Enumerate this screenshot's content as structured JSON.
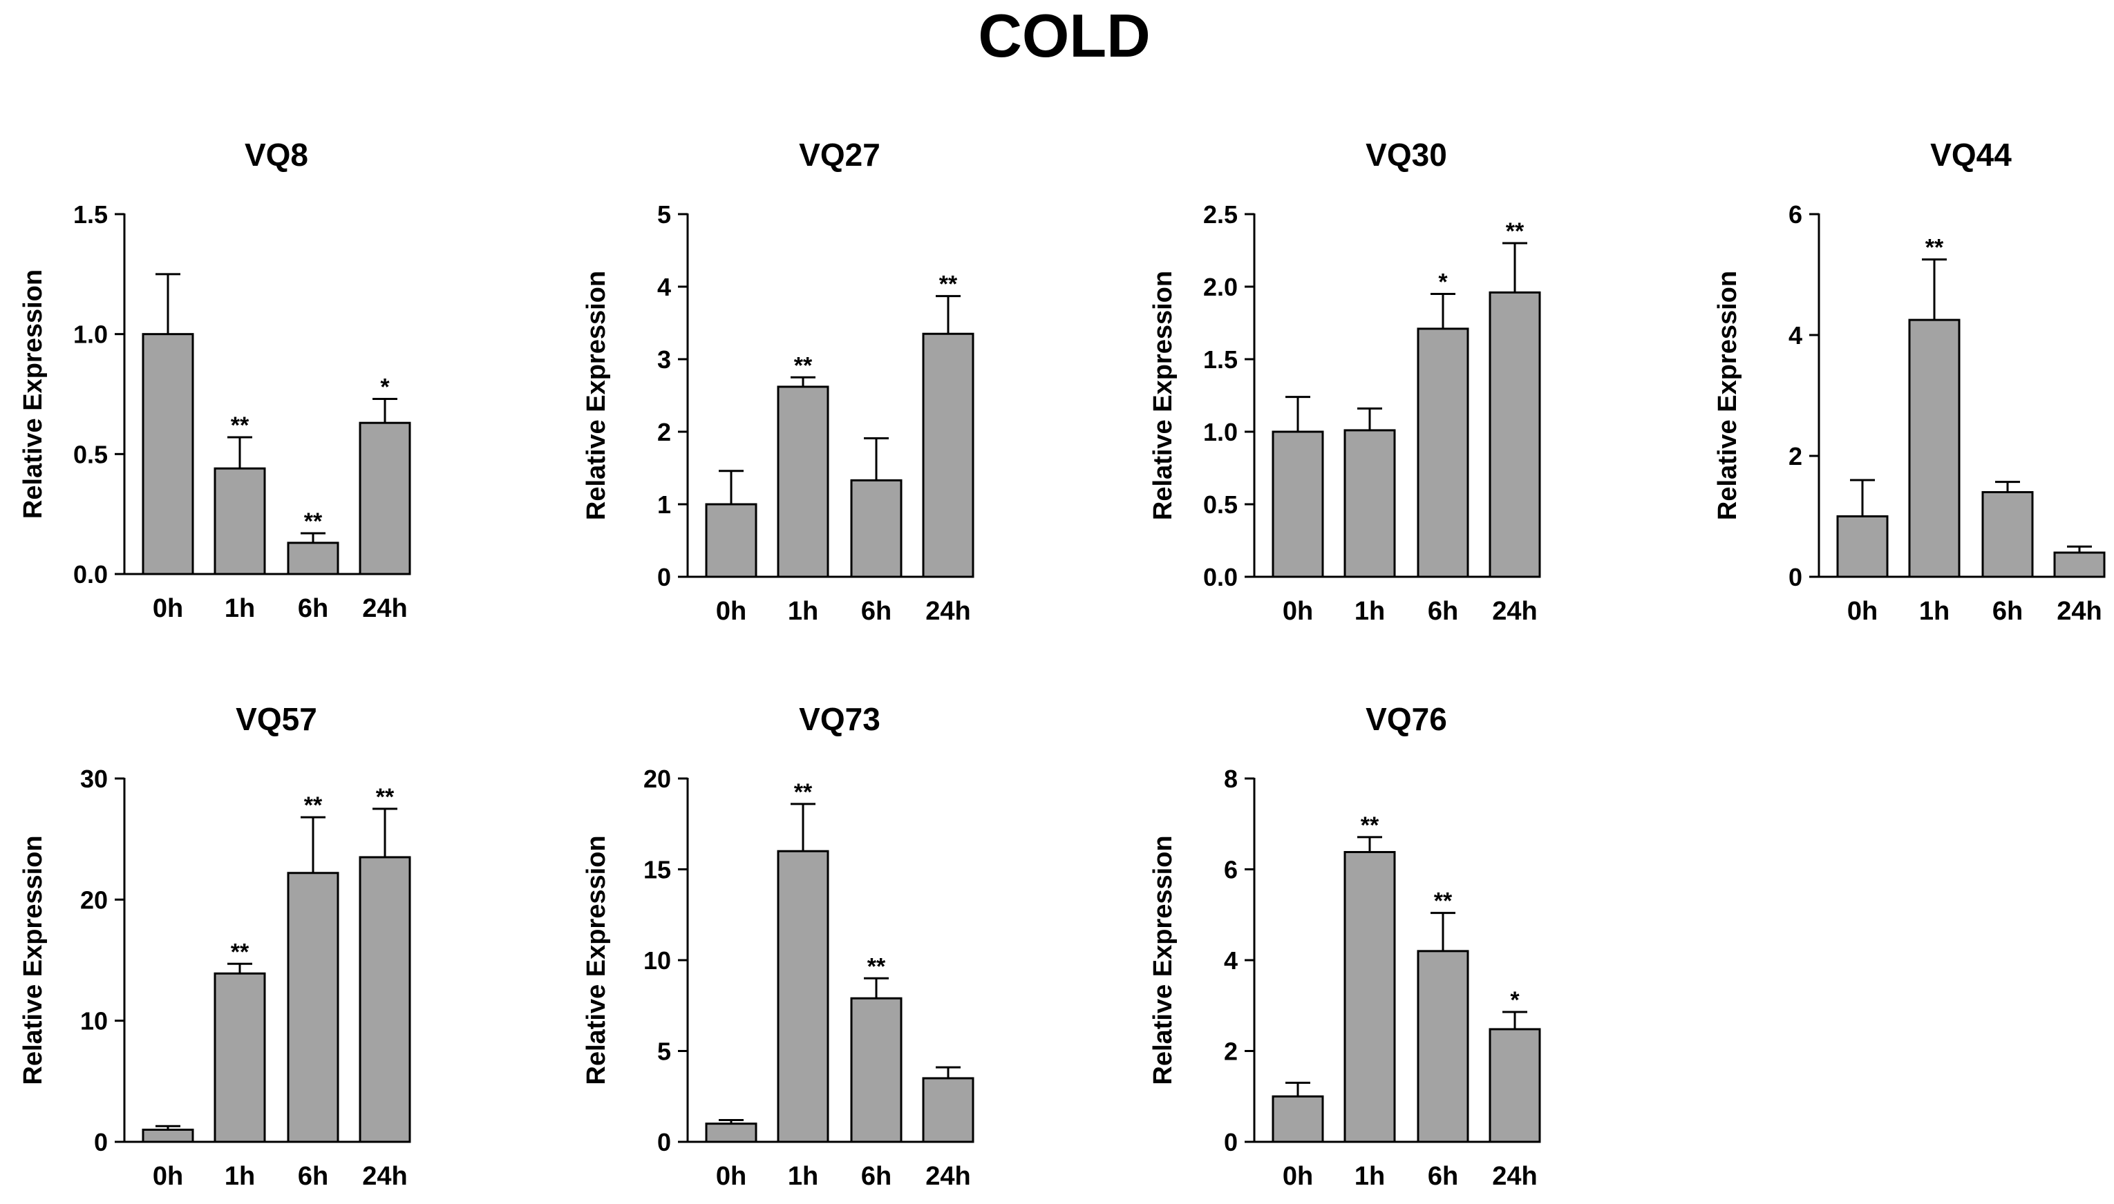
{
  "figure": {
    "title": "COLD"
  },
  "style": {
    "bar_fill": "#a3a3a3",
    "bar_stroke": "#000000",
    "axis_color": "#000000"
  },
  "chart_data": [
    {
      "type": "bar",
      "title": "VQ8",
      "xlabel": "",
      "ylabel": "Relative Expression",
      "categories": [
        "0h",
        "1h",
        "6h",
        "24h"
      ],
      "values": [
        1.0,
        0.44,
        0.13,
        0.63
      ],
      "errors": [
        0.25,
        0.13,
        0.04,
        0.1
      ],
      "significance": [
        "",
        "**",
        "**",
        "*"
      ],
      "ylim": [
        0,
        1.5
      ],
      "yticks": [
        0,
        0.5,
        1.0,
        1.5
      ],
      "ytick_labels": [
        "0.0",
        "0.5",
        "1.0",
        "1.5"
      ]
    },
    {
      "type": "bar",
      "title": "VQ27",
      "xlabel": "",
      "ylabel": "Relative Expression",
      "categories": [
        "0h",
        "1h",
        "6h",
        "24h"
      ],
      "values": [
        1.0,
        2.62,
        1.33,
        3.35
      ],
      "errors": [
        0.46,
        0.13,
        0.58,
        0.52
      ],
      "significance": [
        "",
        "**",
        "",
        "**"
      ],
      "ylim": [
        0,
        5
      ],
      "yticks": [
        0,
        1,
        2,
        3,
        4,
        5
      ],
      "ytick_labels": [
        "0",
        "1",
        "2",
        "3",
        "4",
        "5"
      ]
    },
    {
      "type": "bar",
      "title": "VQ30",
      "xlabel": "",
      "ylabel": "Relative Expression",
      "categories": [
        "0h",
        "1h",
        "6h",
        "24h"
      ],
      "values": [
        1.0,
        1.01,
        1.71,
        1.96
      ],
      "errors": [
        0.24,
        0.15,
        0.24,
        0.34
      ],
      "significance": [
        "",
        "",
        "*",
        "**"
      ],
      "ylim": [
        0,
        2.5
      ],
      "yticks": [
        0,
        0.5,
        1.0,
        1.5,
        2.0,
        2.5
      ],
      "ytick_labels": [
        "0.0",
        "0.5",
        "1.0",
        "1.5",
        "2.0",
        "2.5"
      ]
    },
    {
      "type": "bar",
      "title": "VQ44",
      "xlabel": "",
      "ylabel": "Relative Expression",
      "categories": [
        "0h",
        "1h",
        "6h",
        "24h"
      ],
      "values": [
        1.0,
        4.25,
        1.4,
        0.4
      ],
      "errors": [
        0.6,
        1.0,
        0.17,
        0.1
      ],
      "significance": [
        "",
        "**",
        "",
        ""
      ],
      "ylim": [
        0,
        6
      ],
      "yticks": [
        0,
        2,
        4,
        6
      ],
      "ytick_labels": [
        "0",
        "2",
        "4",
        "6"
      ]
    },
    {
      "type": "bar",
      "title": "VQ57",
      "xlabel": "",
      "ylabel": "Relative Expression",
      "categories": [
        "0h",
        "1h",
        "6h",
        "24h"
      ],
      "values": [
        1.0,
        13.9,
        22.2,
        23.5
      ],
      "errors": [
        0.3,
        0.8,
        4.6,
        4.0
      ],
      "significance": [
        "",
        "**",
        "**",
        "**"
      ],
      "ylim": [
        0,
        30
      ],
      "yticks": [
        0,
        10,
        20,
        30
      ],
      "ytick_labels": [
        "0",
        "10",
        "20",
        "30"
      ]
    },
    {
      "type": "bar",
      "title": "VQ73",
      "xlabel": "",
      "ylabel": "Relative Expression",
      "categories": [
        "0h",
        "1h",
        "6h",
        "24h"
      ],
      "values": [
        1.0,
        16.0,
        7.9,
        3.5
      ],
      "errors": [
        0.2,
        2.6,
        1.1,
        0.6
      ],
      "significance": [
        "",
        "**",
        "**",
        ""
      ],
      "ylim": [
        0,
        20
      ],
      "yticks": [
        0,
        5,
        10,
        15,
        20
      ],
      "ytick_labels": [
        "0",
        "5",
        "10",
        "15",
        "20"
      ]
    },
    {
      "type": "bar",
      "title": "VQ76",
      "xlabel": "",
      "ylabel": "Relative Expression",
      "categories": [
        "0h",
        "1h",
        "6h",
        "24h"
      ],
      "values": [
        1.0,
        6.38,
        4.2,
        2.48
      ],
      "errors": [
        0.3,
        0.33,
        0.84,
        0.38
      ],
      "significance": [
        "",
        "**",
        "**",
        "*"
      ],
      "ylim": [
        0,
        8
      ],
      "yticks": [
        0,
        2,
        4,
        6,
        8
      ],
      "ytick_labels": [
        "0",
        "2",
        "4",
        "6",
        "8"
      ]
    }
  ]
}
